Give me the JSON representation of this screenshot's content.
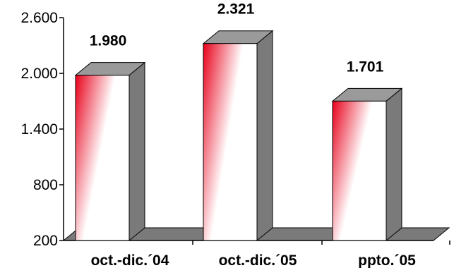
{
  "chart_data": {
    "type": "bar",
    "style": "3d-column",
    "categories": [
      "oct.-dic.´04",
      "oct.-dic.´05",
      "ppto.´05"
    ],
    "values": [
      1980,
      2321,
      1701
    ],
    "value_labels": [
      "1.980",
      "2.321",
      "1.701"
    ],
    "y_ticks": [
      200,
      800,
      1400,
      2000,
      2600
    ],
    "y_tick_labels": [
      "200",
      "800",
      "1.400",
      "2.000",
      "2.600"
    ],
    "ylim": [
      200,
      2600
    ],
    "grid": false,
    "legend": "none",
    "colors": {
      "bar_gradient_dark": "#e8001a",
      "bar_gradient_light": "#ffffff",
      "bar_side": "#7a7a7a",
      "bar_top": "#9a9a9a",
      "floor": "#7a7a7a",
      "outline": "#000000"
    }
  }
}
